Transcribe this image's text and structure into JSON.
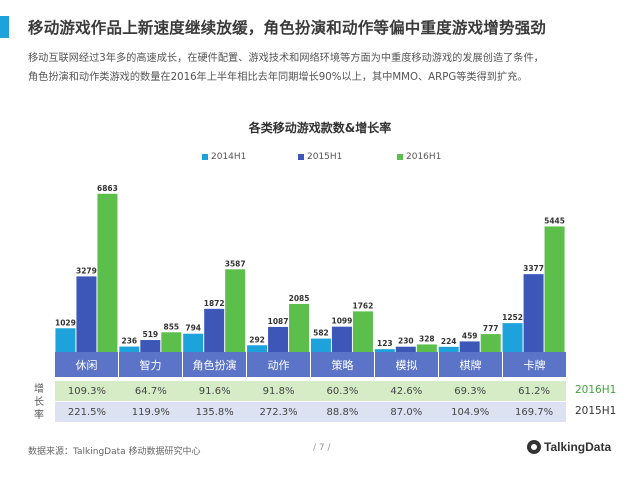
{
  "header": {
    "title": "移动游戏作品上新速度继续放缓，角色扮演和动作等偏中重度游戏增势强劲",
    "desc_line1": "移动互联网经过3年多的高速成长，在硬件配置、游戏技术和网络环境等方面为中重度移动游戏的发展创造了条件，",
    "desc_line2": "角色扮演和动作类游戏的数量在2016年上半年相比去年同期增长90%以上，其中MMO、ARPG等类得到扩充。"
  },
  "chart_data": {
    "type": "bar",
    "title": "各类移动游戏款数&增长率",
    "categories": [
      "休闲",
      "智力",
      "角色扮演",
      "动作",
      "策略",
      "模拟",
      "棋牌",
      "卡牌"
    ],
    "series": [
      {
        "name": "2014H1",
        "color": "#1ea2dc",
        "values": [
          1029,
          236,
          794,
          292,
          582,
          123,
          224,
          1252
        ]
      },
      {
        "name": "2015H1",
        "color": "#3d57b8",
        "values": [
          3279,
          519,
          1872,
          1087,
          1099,
          230,
          459,
          3377
        ]
      },
      {
        "name": "2016H1",
        "color": "#5cbf4b",
        "values": [
          6863,
          855,
          3587,
          2085,
          1762,
          328,
          777,
          5445
        ]
      }
    ],
    "ylim": [
      0,
      7200
    ],
    "growth_rates": [
      {
        "name": "2016H1",
        "values": [
          "109.3%",
          "64.7%",
          "91.6%",
          "91.8%",
          "60.3%",
          "42.6%",
          "69.3%",
          "61.2%"
        ]
      },
      {
        "name": "2015H1",
        "values": [
          "221.5%",
          "119.9%",
          "135.8%",
          "272.3%",
          "88.8%",
          "87.0%",
          "104.9%",
          "169.7%"
        ]
      }
    ],
    "growth_label": "增长率",
    "legend_position": "top-center"
  },
  "footer": {
    "source": "数据来源：TalkingData  移动数据研究中心",
    "page": "/ 7 /",
    "brand": "TalkingData",
    "brand_icon": "talkingdata-logo-icon"
  }
}
